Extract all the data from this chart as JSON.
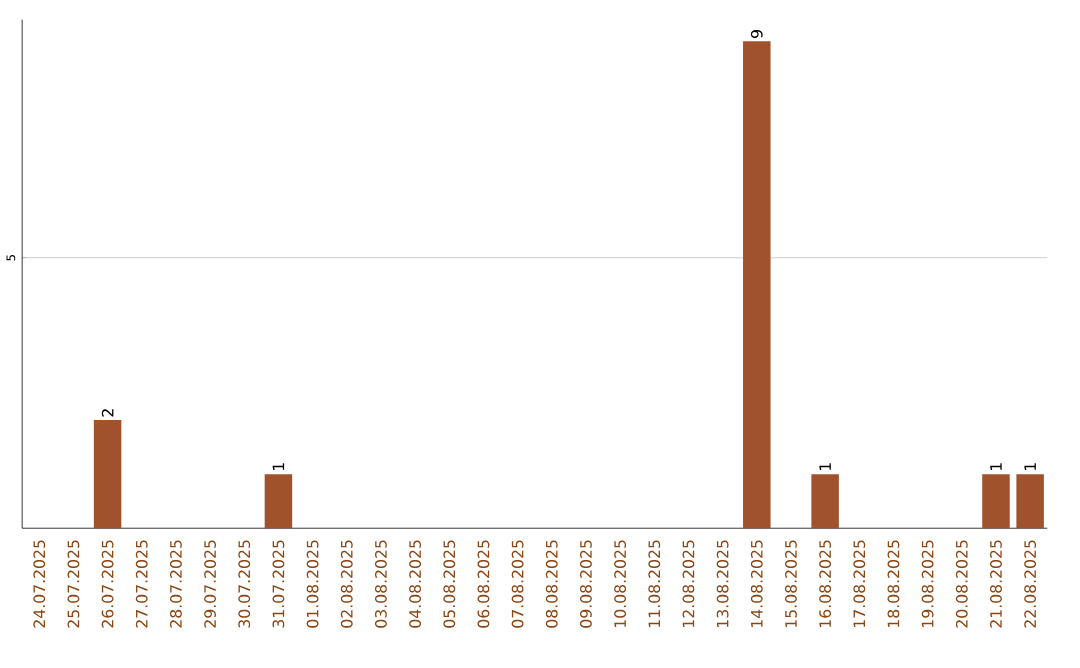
{
  "chart_data": {
    "type": "bar",
    "categories": [
      "24.07.2025",
      "25.07.2025",
      "26.07.2025",
      "27.07.2025",
      "28.07.2025",
      "29.07.2025",
      "30.07.2025",
      "31.07.2025",
      "01.08.2025",
      "02.08.2025",
      "03.08.2025",
      "04.08.2025",
      "05.08.2025",
      "06.08.2025",
      "07.08.2025",
      "08.08.2025",
      "09.08.2025",
      "10.08.2025",
      "11.08.2025",
      "12.08.2025",
      "13.08.2025",
      "14.08.2025",
      "15.08.2025",
      "16.08.2025",
      "17.08.2025",
      "18.08.2025",
      "19.08.2025",
      "20.08.2025",
      "21.08.2025",
      "22.08.2025"
    ],
    "values": [
      0,
      0,
      2,
      0,
      0,
      0,
      0,
      1,
      0,
      0,
      0,
      0,
      0,
      0,
      0,
      0,
      0,
      0,
      0,
      0,
      0,
      9,
      0,
      1,
      0,
      0,
      0,
      0,
      1,
      1
    ],
    "value_labels": [
      null,
      null,
      "2",
      null,
      null,
      null,
      null,
      "1",
      null,
      null,
      null,
      null,
      null,
      null,
      null,
      null,
      null,
      null,
      null,
      null,
      null,
      "9",
      null,
      "1",
      null,
      null,
      null,
      null,
      "1",
      "1"
    ],
    "color": "#a0522d",
    "ylim": [
      0,
      9.4
    ],
    "yticks": [
      5
    ],
    "grid": "y"
  }
}
